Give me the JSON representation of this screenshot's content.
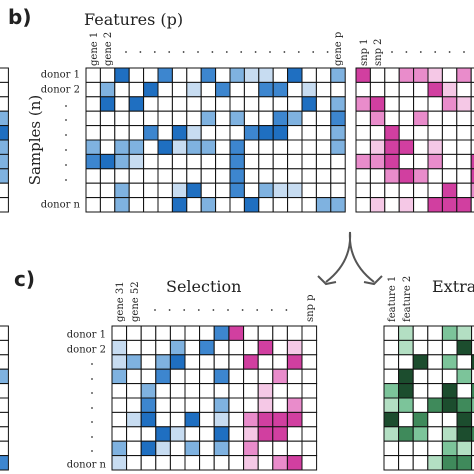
{
  "panel_b": {
    "label": "b)",
    "title": "Features (p)",
    "y_axis_label": "Samples (n)",
    "gene_columns": [
      "gene 1",
      "gene 2",
      "gene p"
    ],
    "snp_columns": [
      "snp 1",
      "snp 2"
    ],
    "rows": [
      "donor 1",
      "donor 2",
      "donor n"
    ]
  },
  "panel_c": {
    "label": "c)",
    "selection_title": "Selection",
    "extraction_title": "Extraction",
    "selection_columns": [
      "gene 31",
      "gene 52",
      "snp p"
    ],
    "extraction_columns": [
      "feature 1",
      "feature 2"
    ],
    "rows": [
      "donor 1",
      "donor 2",
      "donor n"
    ]
  }
}
